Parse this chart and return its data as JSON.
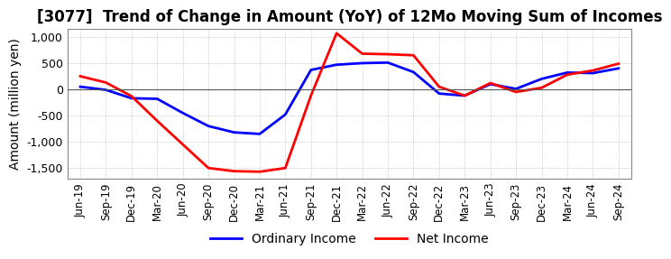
{
  "title": "[3077]  Trend of Change in Amount (YoY) of 12Mo Moving Sum of Incomes",
  "ylabel": "Amount (million yen)",
  "x_labels": [
    "Jun-19",
    "Sep-19",
    "Dec-19",
    "Mar-20",
    "Jun-20",
    "Sep-20",
    "Dec-20",
    "Mar-21",
    "Jun-21",
    "Sep-21",
    "Dec-21",
    "Mar-22",
    "Jun-22",
    "Sep-22",
    "Dec-22",
    "Mar-23",
    "Jun-23",
    "Sep-23",
    "Dec-23",
    "Mar-24",
    "Jun-24",
    "Sep-24"
  ],
  "ordinary_income": [
    50,
    -10,
    -170,
    -180,
    -450,
    -700,
    -820,
    -850,
    -480,
    370,
    470,
    500,
    510,
    330,
    -80,
    -120,
    100,
    10,
    200,
    320,
    310,
    400
  ],
  "net_income": [
    250,
    130,
    -130,
    -600,
    -1050,
    -1500,
    -1560,
    -1570,
    -1500,
    -120,
    1070,
    680,
    670,
    650,
    50,
    -120,
    120,
    -50,
    30,
    280,
    360,
    490
  ],
  "ordinary_income_color": "#0000ff",
  "net_income_color": "#ff0000",
  "ylim": [
    -1700,
    1150
  ],
  "yticks": [
    -1500,
    -1000,
    -500,
    0,
    500,
    1000
  ],
  "grid_color": "#aaaaaa",
  "background_color": "#ffffff",
  "legend_labels": [
    "Ordinary Income",
    "Net Income"
  ],
  "title_fontsize": 12,
  "label_fontsize": 10,
  "line_width": 2.0
}
